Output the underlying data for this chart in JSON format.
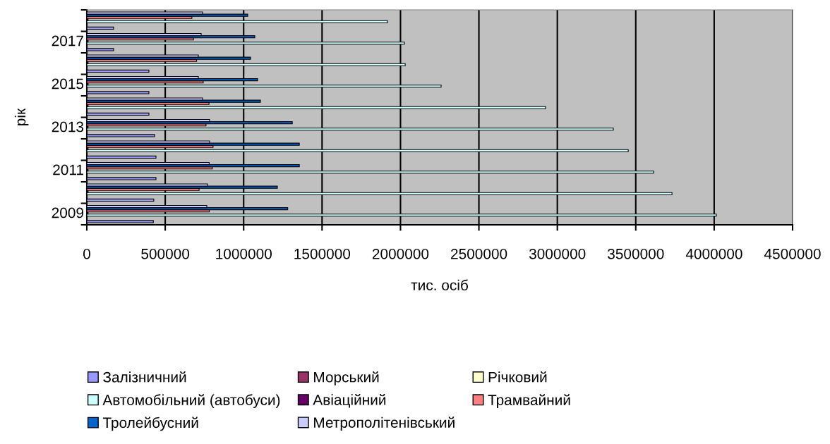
{
  "chart_data": {
    "type": "bar",
    "orientation": "horizontal",
    "xlabel": "тис. осіб",
    "ylabel": "рік",
    "categories": [
      null,
      "2017",
      null,
      "2015",
      null,
      "2013",
      null,
      "2011",
      null,
      "2009"
    ],
    "series": [
      {
        "name": "Залізничний",
        "color": "#9999ff",
        "values": [
          171000,
          171000,
          396000,
          396000,
          396000,
          432000,
          441000,
          441000,
          427000,
          424000
        ]
      },
      {
        "name": "Морський",
        "color": "#993366",
        "values": [
          null,
          null,
          null,
          null,
          null,
          null,
          null,
          null,
          null,
          null
        ]
      },
      {
        "name": "Річковий",
        "color": "#ffffcc",
        "values": [
          null,
          null,
          null,
          null,
          null,
          null,
          null,
          null,
          null,
          null
        ]
      },
      {
        "name": "Автомобільний (автобуси)",
        "color": "#ccffff",
        "values": [
          1917000,
          2025000,
          2030000,
          2259000,
          2925000,
          3357000,
          3452000,
          3614000,
          3731000,
          4014000
        ]
      },
      {
        "name": "Авіаційний",
        "color": "#660066",
        "values": [
          8000,
          8000,
          8000,
          8000,
          8000,
          8000,
          8000,
          8000,
          8000,
          8000
        ]
      },
      {
        "name": "Трамвайний",
        "color": "#ff8080",
        "values": [
          670000,
          680000,
          700000,
          742000,
          779000,
          760000,
          805000,
          800000,
          716000,
          781000
        ]
      },
      {
        "name": "Тролейбусний",
        "color": "#0066cc",
        "values": [
          1026000,
          1071000,
          1044000,
          1089000,
          1107000,
          1310000,
          1355000,
          1355000,
          1215000,
          1281000
        ]
      },
      {
        "name": "Метрополітенівський",
        "color": "#ccccff",
        "values": [
          738000,
          729000,
          711000,
          711000,
          738000,
          783000,
          783000,
          780000,
          770000,
          765000
        ]
      }
    ],
    "xlim": [
      0,
      4500000
    ],
    "xticks": [
      0,
      500000,
      1000000,
      1500000,
      2000000,
      2500000,
      3000000,
      3500000,
      4000000,
      4500000
    ],
    "grid": "x",
    "legend": "bottom"
  }
}
